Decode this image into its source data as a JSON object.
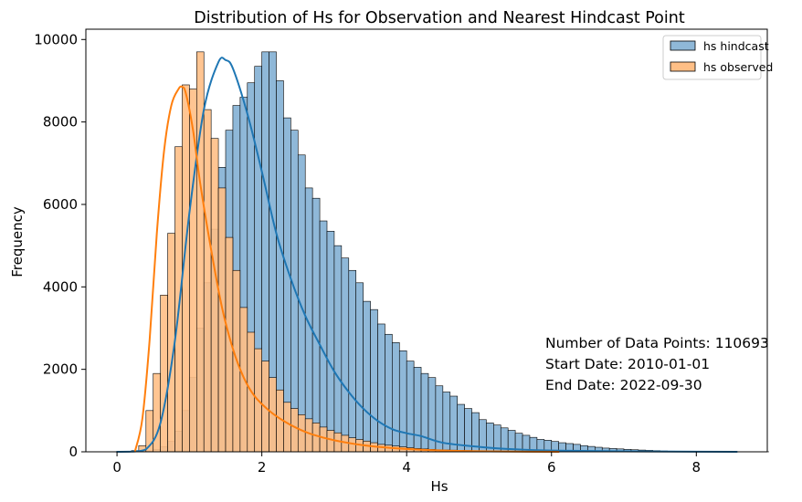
{
  "chart_data": {
    "type": "bar",
    "title": "Distribution of Hs for Observation and Nearest Hindcast Point",
    "xlabel": "Hs",
    "ylabel": "Frequency",
    "xlim": [
      -0.43,
      8.98
    ],
    "ylim": [
      0,
      10250
    ],
    "xticks": [
      0,
      2,
      4,
      6,
      8
    ],
    "yticks": [
      0,
      2000,
      4000,
      6000,
      8000,
      10000
    ],
    "grid": false,
    "legend_position": "top-right",
    "annotations": [
      "Number of Data Points: 110693",
      "Start Date: 2010-01-01",
      "End Date: 2022-09-30"
    ],
    "series": [
      {
        "name": "hs hindcast",
        "color": "#1f77b4",
        "bin_start": 0.0,
        "bin_width": 0.1,
        "values": [
          2,
          3,
          5,
          10,
          20,
          60,
          120,
          250,
          500,
          1000,
          1800,
          3000,
          4100,
          5400,
          6900,
          7800,
          8400,
          8600,
          8950,
          9350,
          9700,
          9700,
          9000,
          8100,
          7800,
          7200,
          6400,
          6150,
          5600,
          5350,
          5000,
          4700,
          4400,
          4100,
          3650,
          3450,
          3100,
          2850,
          2650,
          2450,
          2200,
          2050,
          1900,
          1800,
          1600,
          1450,
          1350,
          1150,
          1050,
          950,
          780,
          700,
          650,
          580,
          520,
          450,
          400,
          350,
          300,
          280,
          250,
          220,
          200,
          180,
          150,
          130,
          110,
          90,
          80,
          70,
          60,
          50,
          42,
          35,
          28,
          20,
          16,
          12,
          10,
          8,
          7,
          6,
          5,
          5,
          4,
          4,
          3,
          3,
          3,
          2
        ],
        "kde_x": [
          0,
          0.2,
          0.4,
          0.6,
          0.8,
          1.0,
          1.2,
          1.4,
          1.5,
          1.6,
          1.8,
          2.0,
          2.2,
          2.4,
          2.6,
          2.8,
          3.0,
          3.2,
          3.4,
          3.6,
          3.8,
          4.0,
          4.2,
          4.5,
          5.0,
          5.5,
          6.0,
          7.0,
          8.56
        ],
        "kde_y": [
          0,
          5,
          60,
          700,
          2700,
          5800,
          8300,
          9450,
          9500,
          9300,
          8200,
          6800,
          5300,
          4200,
          3300,
          2600,
          1950,
          1450,
          1050,
          750,
          550,
          450,
          380,
          220,
          120,
          60,
          30,
          10,
          0
        ]
      },
      {
        "name": "hs observed",
        "color": "#ff7f0e",
        "bin_start": 0.2,
        "bin_width": 0.1,
        "values": [
          30,
          150,
          1000,
          1900,
          3800,
          5300,
          7400,
          8900,
          8800,
          9700,
          8300,
          7600,
          6400,
          5200,
          4400,
          3500,
          2900,
          2500,
          2200,
          1800,
          1500,
          1200,
          1050,
          900,
          800,
          700,
          600,
          520,
          460,
          400,
          340,
          300,
          260,
          220,
          180,
          160,
          140,
          120,
          100,
          80,
          70,
          60,
          50,
          45,
          40,
          35,
          30,
          25,
          22,
          20,
          18,
          16,
          14,
          12,
          10,
          9,
          8,
          7,
          6,
          5
        ],
        "kde_x": [
          0.25,
          0.35,
          0.45,
          0.55,
          0.65,
          0.75,
          0.85,
          0.9,
          0.95,
          1.05,
          1.15,
          1.3,
          1.45,
          1.6,
          1.75,
          1.9,
          2.1,
          2.3,
          2.5,
          2.7,
          3.0,
          3.4,
          3.8,
          4.2,
          4.8,
          5.5,
          6.1
        ],
        "kde_y": [
          20,
          800,
          2700,
          5300,
          7300,
          8400,
          8800,
          8850,
          8700,
          7800,
          6500,
          4900,
          3500,
          2500,
          1800,
          1350,
          1000,
          750,
          560,
          420,
          280,
          160,
          90,
          50,
          20,
          5,
          0
        ]
      }
    ]
  }
}
